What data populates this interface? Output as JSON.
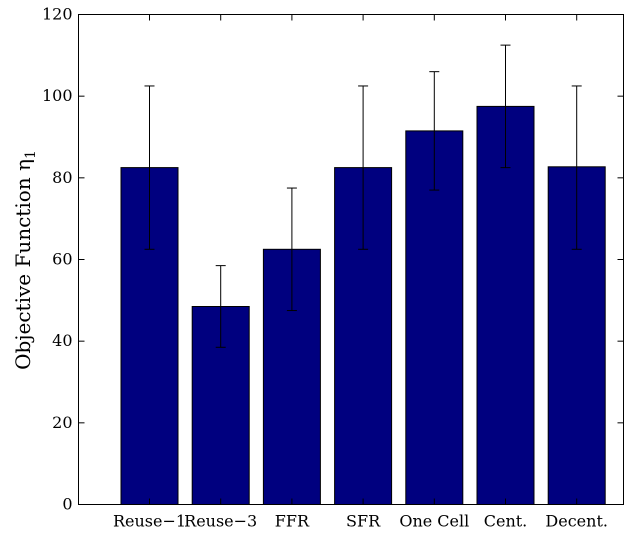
{
  "chart_data": {
    "type": "bar",
    "title": "",
    "xlabel": "",
    "ylabel": "Objective Function η",
    "ylabel_subscript": "1",
    "categories": [
      "Reuse−1",
      "Reuse−3",
      "FFR",
      "SFR",
      "One Cell",
      "Cent.",
      "Decent."
    ],
    "values": [
      82.5,
      48.5,
      62.5,
      82.5,
      91.5,
      97.5,
      82.7
    ],
    "errors": [
      [
        62.5,
        102.5
      ],
      [
        38.5,
        58.5
      ],
      [
        47.5,
        77.5
      ],
      [
        62.5,
        102.5
      ],
      [
        77.0,
        106.0
      ],
      [
        82.5,
        112.5
      ],
      [
        62.5,
        102.5
      ]
    ],
    "ylim": [
      0,
      120
    ],
    "yticks": [
      0,
      20,
      40,
      60,
      80,
      100,
      120
    ],
    "grid": false,
    "colors": {
      "bar": "#00007f",
      "bar_edge": "#000000"
    }
  }
}
